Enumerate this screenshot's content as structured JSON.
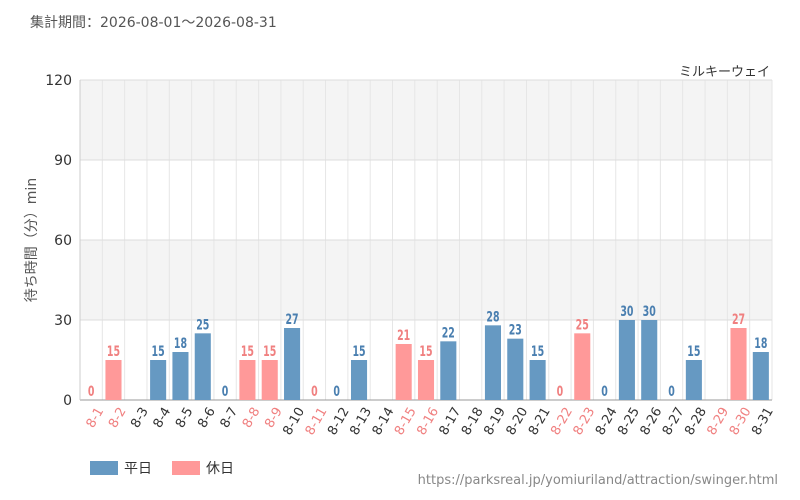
{
  "header": {
    "period_label": "集計期間：2026-08-01～2026-08-31",
    "attraction_name": "ミルキーウェイ"
  },
  "legend": {
    "weekday_label": "平日",
    "holiday_label": "休日"
  },
  "footer": {
    "source_url": "https://parksreal.jp/yomiuriland/attraction/swinger.html"
  },
  "colors": {
    "weekday": "#6699c2",
    "holiday": "#ff9999",
    "weekday_text": "#4a7fb0",
    "holiday_text": "#f08080"
  },
  "chart_data": {
    "type": "bar",
    "title": "",
    "xlabel": "",
    "ylabel": "待ち時間（分）min",
    "ylim": [
      0,
      120
    ],
    "yticks": [
      0,
      30,
      60,
      90,
      120
    ],
    "grid": true,
    "categories": [
      "8-1",
      "8-2",
      "8-3",
      "8-4",
      "8-5",
      "8-6",
      "8-7",
      "8-8",
      "8-9",
      "8-10",
      "8-11",
      "8-12",
      "8-13",
      "8-14",
      "8-15",
      "8-16",
      "8-17",
      "8-18",
      "8-19",
      "8-20",
      "8-21",
      "8-22",
      "8-23",
      "8-24",
      "8-25",
      "8-26",
      "8-27",
      "8-28",
      "8-29",
      "8-30",
      "8-31"
    ],
    "values": [
      0,
      15,
      null,
      15,
      18,
      25,
      0,
      15,
      15,
      27,
      0,
      0,
      15,
      null,
      21,
      15,
      22,
      null,
      28,
      23,
      15,
      0,
      25,
      0,
      30,
      30,
      0,
      15,
      null,
      27,
      18
    ],
    "day_type": [
      "holiday",
      "holiday",
      "weekday",
      "weekday",
      "weekday",
      "weekday",
      "weekday",
      "holiday",
      "holiday",
      "weekday",
      "holiday",
      "weekday",
      "weekday",
      "weekday",
      "holiday",
      "holiday",
      "weekday",
      "weekday",
      "weekday",
      "weekday",
      "weekday",
      "holiday",
      "holiday",
      "weekday",
      "weekday",
      "weekday",
      "weekday",
      "weekday",
      "holiday",
      "holiday",
      "weekday"
    ]
  }
}
